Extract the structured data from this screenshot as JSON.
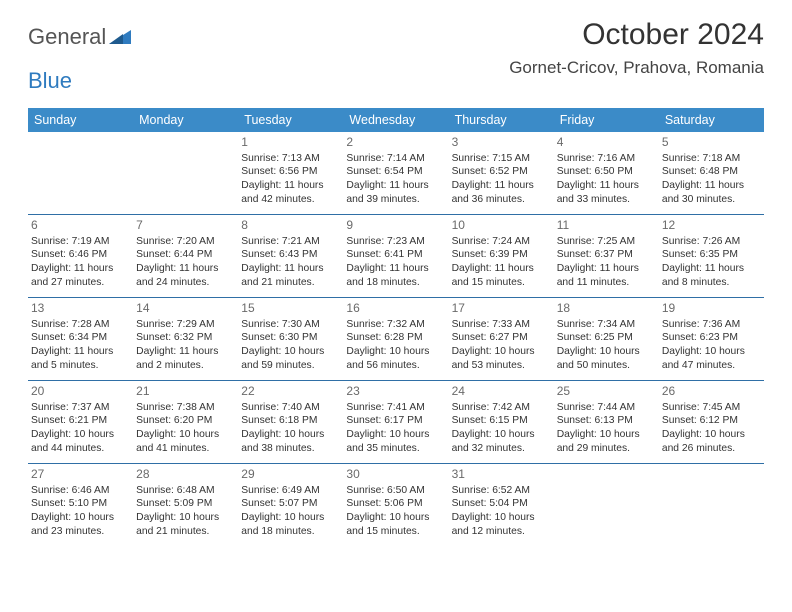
{
  "logo": {
    "part1": "General",
    "part2": "Blue"
  },
  "header": {
    "month_title": "October 2024",
    "location": "Gornet-Cricov, Prahova, Romania"
  },
  "colors": {
    "header_bg": "#3b8bc8",
    "header_text": "#ffffff",
    "row_border": "#2f6fa6",
    "daynum": "#6a6a6a",
    "body_text": "#333333",
    "bg": "#ffffff",
    "logo_gray": "#555555",
    "logo_blue": "#2f7bbf"
  },
  "dow": [
    "Sunday",
    "Monday",
    "Tuesday",
    "Wednesday",
    "Thursday",
    "Friday",
    "Saturday"
  ],
  "weeks": [
    [
      {
        "n": "",
        "sr": "",
        "ss": "",
        "dl": ""
      },
      {
        "n": "",
        "sr": "",
        "ss": "",
        "dl": ""
      },
      {
        "n": "1",
        "sr": "Sunrise: 7:13 AM",
        "ss": "Sunset: 6:56 PM",
        "dl": "Daylight: 11 hours and 42 minutes."
      },
      {
        "n": "2",
        "sr": "Sunrise: 7:14 AM",
        "ss": "Sunset: 6:54 PM",
        "dl": "Daylight: 11 hours and 39 minutes."
      },
      {
        "n": "3",
        "sr": "Sunrise: 7:15 AM",
        "ss": "Sunset: 6:52 PM",
        "dl": "Daylight: 11 hours and 36 minutes."
      },
      {
        "n": "4",
        "sr": "Sunrise: 7:16 AM",
        "ss": "Sunset: 6:50 PM",
        "dl": "Daylight: 11 hours and 33 minutes."
      },
      {
        "n": "5",
        "sr": "Sunrise: 7:18 AM",
        "ss": "Sunset: 6:48 PM",
        "dl": "Daylight: 11 hours and 30 minutes."
      }
    ],
    [
      {
        "n": "6",
        "sr": "Sunrise: 7:19 AM",
        "ss": "Sunset: 6:46 PM",
        "dl": "Daylight: 11 hours and 27 minutes."
      },
      {
        "n": "7",
        "sr": "Sunrise: 7:20 AM",
        "ss": "Sunset: 6:44 PM",
        "dl": "Daylight: 11 hours and 24 minutes."
      },
      {
        "n": "8",
        "sr": "Sunrise: 7:21 AM",
        "ss": "Sunset: 6:43 PM",
        "dl": "Daylight: 11 hours and 21 minutes."
      },
      {
        "n": "9",
        "sr": "Sunrise: 7:23 AM",
        "ss": "Sunset: 6:41 PM",
        "dl": "Daylight: 11 hours and 18 minutes."
      },
      {
        "n": "10",
        "sr": "Sunrise: 7:24 AM",
        "ss": "Sunset: 6:39 PM",
        "dl": "Daylight: 11 hours and 15 minutes."
      },
      {
        "n": "11",
        "sr": "Sunrise: 7:25 AM",
        "ss": "Sunset: 6:37 PM",
        "dl": "Daylight: 11 hours and 11 minutes."
      },
      {
        "n": "12",
        "sr": "Sunrise: 7:26 AM",
        "ss": "Sunset: 6:35 PM",
        "dl": "Daylight: 11 hours and 8 minutes."
      }
    ],
    [
      {
        "n": "13",
        "sr": "Sunrise: 7:28 AM",
        "ss": "Sunset: 6:34 PM",
        "dl": "Daylight: 11 hours and 5 minutes."
      },
      {
        "n": "14",
        "sr": "Sunrise: 7:29 AM",
        "ss": "Sunset: 6:32 PM",
        "dl": "Daylight: 11 hours and 2 minutes."
      },
      {
        "n": "15",
        "sr": "Sunrise: 7:30 AM",
        "ss": "Sunset: 6:30 PM",
        "dl": "Daylight: 10 hours and 59 minutes."
      },
      {
        "n": "16",
        "sr": "Sunrise: 7:32 AM",
        "ss": "Sunset: 6:28 PM",
        "dl": "Daylight: 10 hours and 56 minutes."
      },
      {
        "n": "17",
        "sr": "Sunrise: 7:33 AM",
        "ss": "Sunset: 6:27 PM",
        "dl": "Daylight: 10 hours and 53 minutes."
      },
      {
        "n": "18",
        "sr": "Sunrise: 7:34 AM",
        "ss": "Sunset: 6:25 PM",
        "dl": "Daylight: 10 hours and 50 minutes."
      },
      {
        "n": "19",
        "sr": "Sunrise: 7:36 AM",
        "ss": "Sunset: 6:23 PM",
        "dl": "Daylight: 10 hours and 47 minutes."
      }
    ],
    [
      {
        "n": "20",
        "sr": "Sunrise: 7:37 AM",
        "ss": "Sunset: 6:21 PM",
        "dl": "Daylight: 10 hours and 44 minutes."
      },
      {
        "n": "21",
        "sr": "Sunrise: 7:38 AM",
        "ss": "Sunset: 6:20 PM",
        "dl": "Daylight: 10 hours and 41 minutes."
      },
      {
        "n": "22",
        "sr": "Sunrise: 7:40 AM",
        "ss": "Sunset: 6:18 PM",
        "dl": "Daylight: 10 hours and 38 minutes."
      },
      {
        "n": "23",
        "sr": "Sunrise: 7:41 AM",
        "ss": "Sunset: 6:17 PM",
        "dl": "Daylight: 10 hours and 35 minutes."
      },
      {
        "n": "24",
        "sr": "Sunrise: 7:42 AM",
        "ss": "Sunset: 6:15 PM",
        "dl": "Daylight: 10 hours and 32 minutes."
      },
      {
        "n": "25",
        "sr": "Sunrise: 7:44 AM",
        "ss": "Sunset: 6:13 PM",
        "dl": "Daylight: 10 hours and 29 minutes."
      },
      {
        "n": "26",
        "sr": "Sunrise: 7:45 AM",
        "ss": "Sunset: 6:12 PM",
        "dl": "Daylight: 10 hours and 26 minutes."
      }
    ],
    [
      {
        "n": "27",
        "sr": "Sunrise: 6:46 AM",
        "ss": "Sunset: 5:10 PM",
        "dl": "Daylight: 10 hours and 23 minutes."
      },
      {
        "n": "28",
        "sr": "Sunrise: 6:48 AM",
        "ss": "Sunset: 5:09 PM",
        "dl": "Daylight: 10 hours and 21 minutes."
      },
      {
        "n": "29",
        "sr": "Sunrise: 6:49 AM",
        "ss": "Sunset: 5:07 PM",
        "dl": "Daylight: 10 hours and 18 minutes."
      },
      {
        "n": "30",
        "sr": "Sunrise: 6:50 AM",
        "ss": "Sunset: 5:06 PM",
        "dl": "Daylight: 10 hours and 15 minutes."
      },
      {
        "n": "31",
        "sr": "Sunrise: 6:52 AM",
        "ss": "Sunset: 5:04 PM",
        "dl": "Daylight: 10 hours and 12 minutes."
      },
      {
        "n": "",
        "sr": "",
        "ss": "",
        "dl": ""
      },
      {
        "n": "",
        "sr": "",
        "ss": "",
        "dl": ""
      }
    ]
  ]
}
